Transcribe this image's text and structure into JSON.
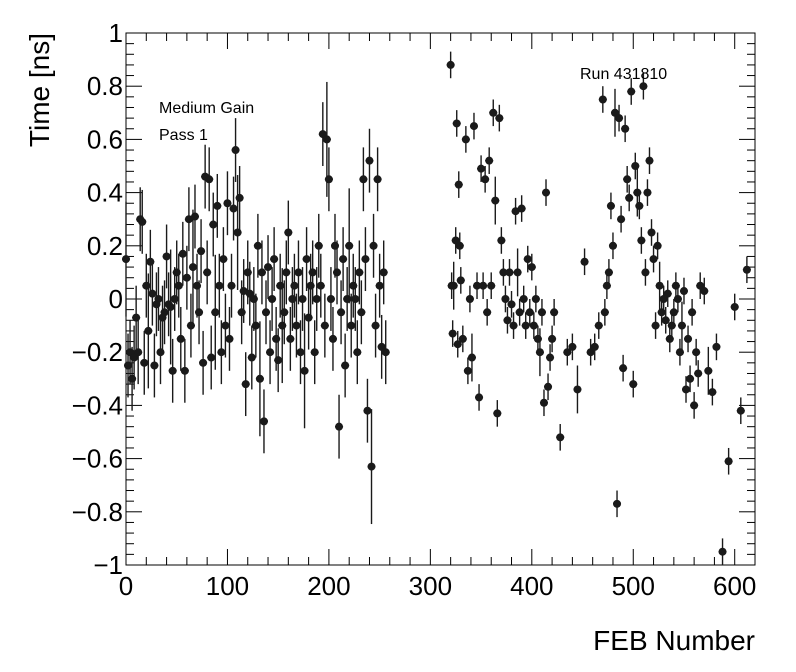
{
  "chart_data": {
    "type": "scatter",
    "xlabel": "FEB Number",
    "ylabel": "Time [ns]",
    "xlim": [
      0,
      620
    ],
    "ylim": [
      -1,
      1
    ],
    "x_ticks": [
      "0",
      "100",
      "200",
      "300",
      "400",
      "500",
      "600"
    ],
    "y_ticks": [
      "−1",
      "−0.8",
      "−0.6",
      "−0.4",
      "−0.2",
      "0",
      "0.2",
      "0.4",
      "0.6",
      "0.8",
      "1"
    ],
    "annotations": [
      "Medium Gain",
      "Pass 1",
      "Run 431810"
    ],
    "grid": false,
    "marker_color": "#1a1a1a",
    "series": [
      {
        "points": [
          [
            0,
            0.15
          ],
          [
            2,
            -0.25
          ],
          [
            4,
            -0.2
          ],
          [
            6,
            -0.3
          ],
          [
            8,
            -0.22
          ],
          [
            10,
            -0.07
          ],
          [
            12,
            -0.2
          ],
          [
            14,
            0.3
          ],
          [
            16,
            0.29
          ],
          [
            18,
            -0.24
          ],
          [
            20,
            0.05
          ],
          [
            22,
            -0.12
          ],
          [
            24,
            0.14
          ],
          [
            26,
            0.02
          ],
          [
            28,
            -0.25
          ],
          [
            30,
            -0.02
          ],
          [
            32,
            0.0
          ],
          [
            34,
            -0.2
          ],
          [
            36,
            -0.07
          ],
          [
            38,
            -0.05
          ],
          [
            40,
            0.16
          ],
          [
            42,
            -0.02
          ],
          [
            44,
            -0.03
          ],
          [
            46,
            -0.27
          ],
          [
            48,
            0.0
          ],
          [
            50,
            0.1
          ],
          [
            52,
            0.05
          ],
          [
            54,
            -0.15
          ],
          [
            56,
            0.17
          ],
          [
            58,
            -0.27
          ],
          [
            60,
            0.08
          ],
          [
            62,
            0.3
          ],
          [
            64,
            -0.1
          ],
          [
            66,
            0.12
          ],
          [
            68,
            0.31
          ],
          [
            70,
            0.05
          ],
          [
            72,
            -0.05
          ],
          [
            74,
            0.18
          ],
          [
            76,
            -0.24
          ],
          [
            78,
            0.46
          ],
          [
            80,
            0.1
          ],
          [
            82,
            0.45
          ],
          [
            84,
            -0.22
          ],
          [
            86,
            0.28
          ],
          [
            88,
            -0.05
          ],
          [
            90,
            0.35
          ],
          [
            92,
            0.05
          ],
          [
            94,
            -0.2
          ],
          [
            96,
            0.15
          ],
          [
            98,
            -0.1
          ],
          [
            100,
            0.36
          ],
          [
            102,
            -0.15
          ],
          [
            104,
            0.05
          ],
          [
            106,
            0.34
          ],
          [
            108,
            0.56
          ],
          [
            110,
            0.25
          ],
          [
            112,
            0.38
          ],
          [
            114,
            -0.05
          ],
          [
            116,
            0.03
          ],
          [
            118,
            -0.32
          ],
          [
            120,
            0.1
          ],
          [
            122,
            0.02
          ],
          [
            124,
            -0.22
          ],
          [
            126,
            0.0
          ],
          [
            128,
            -0.1
          ],
          [
            130,
            0.2
          ],
          [
            132,
            -0.3
          ],
          [
            134,
            0.1
          ],
          [
            136,
            -0.46
          ],
          [
            138,
            -0.05
          ],
          [
            140,
            0.12
          ],
          [
            142,
            -0.2
          ],
          [
            144,
            0.0
          ],
          [
            146,
            0.15
          ],
          [
            148,
            -0.15
          ],
          [
            150,
            -0.23
          ],
          [
            152,
            0.05
          ],
          [
            154,
            -0.1
          ],
          [
            156,
            -0.05
          ],
          [
            158,
            0.1
          ],
          [
            160,
            0.25
          ],
          [
            162,
            -0.15
          ],
          [
            164,
            0.0
          ],
          [
            166,
            0.05
          ],
          [
            168,
            -0.1
          ],
          [
            170,
            0.1
          ],
          [
            172,
            -0.2
          ],
          [
            174,
            0.0
          ],
          [
            176,
            -0.27
          ],
          [
            178,
            0.15
          ],
          [
            180,
            -0.07
          ],
          [
            182,
            0.05
          ],
          [
            184,
            0.1
          ],
          [
            186,
            -0.2
          ],
          [
            188,
            0.0
          ],
          [
            190,
            0.2
          ],
          [
            192,
            0.05
          ],
          [
            194,
            0.62
          ],
          [
            196,
            -0.1
          ],
          [
            198,
            0.6
          ],
          [
            200,
            0.45
          ],
          [
            202,
            0.0
          ],
          [
            204,
            -0.15
          ],
          [
            206,
            0.2
          ],
          [
            208,
            0.1
          ],
          [
            210,
            -0.48
          ],
          [
            212,
            -0.05
          ],
          [
            214,
            0.15
          ],
          [
            216,
            -0.25
          ],
          [
            218,
            0.0
          ],
          [
            220,
            0.2
          ],
          [
            222,
            -0.1
          ],
          [
            224,
            0.05
          ],
          [
            226,
            0.0
          ],
          [
            228,
            -0.2
          ],
          [
            230,
            0.1
          ],
          [
            232,
            -0.05
          ],
          [
            234,
            0.45
          ],
          [
            236,
            0.15
          ],
          [
            238,
            -0.42
          ],
          [
            240,
            0.52
          ],
          [
            242,
            -0.63
          ],
          [
            244,
            0.2
          ],
          [
            246,
            -0.1
          ],
          [
            248,
            0.45
          ],
          [
            250,
            0.05
          ],
          [
            252,
            -0.18
          ],
          [
            254,
            0.1
          ],
          [
            256,
            -0.2
          ],
          [
            320,
            0.88
          ],
          [
            321,
            0.05
          ],
          [
            322,
            -0.13
          ],
          [
            323,
            0.05
          ],
          [
            325,
            0.22
          ],
          [
            326,
            0.66
          ],
          [
            327,
            -0.17
          ],
          [
            328,
            0.43
          ],
          [
            329,
            0.2
          ],
          [
            330,
            0.07
          ],
          [
            332,
            -0.15
          ],
          [
            335,
            0.6
          ],
          [
            337,
            -0.27
          ],
          [
            339,
            0.0
          ],
          [
            341,
            -0.22
          ],
          [
            343,
            0.65
          ],
          [
            346,
            0.05
          ],
          [
            348,
            -0.37
          ],
          [
            350,
            0.49
          ],
          [
            352,
            0.05
          ],
          [
            354,
            0.45
          ],
          [
            356,
            -0.05
          ],
          [
            358,
            0.52
          ],
          [
            360,
            0.05
          ],
          [
            362,
            0.7
          ],
          [
            364,
            0.37
          ],
          [
            366,
            -0.43
          ],
          [
            368,
            0.68
          ],
          [
            370,
            0.22
          ],
          [
            372,
            0.1
          ],
          [
            374,
            0.0
          ],
          [
            376,
            -0.08
          ],
          [
            378,
            0.1
          ],
          [
            380,
            -0.02
          ],
          [
            382,
            -0.1
          ],
          [
            384,
            0.33
          ],
          [
            386,
            0.1
          ],
          [
            388,
            -0.05
          ],
          [
            390,
            0.34
          ],
          [
            392,
            0.0
          ],
          [
            394,
            -0.1
          ],
          [
            396,
            0.15
          ],
          [
            398,
            -0.05
          ],
          [
            400,
            0.12
          ],
          [
            402,
            -0.1
          ],
          [
            404,
            0.0
          ],
          [
            406,
            -0.15
          ],
          [
            408,
            -0.2
          ],
          [
            410,
            -0.05
          ],
          [
            412,
            -0.39
          ],
          [
            414,
            0.4
          ],
          [
            416,
            -0.33
          ],
          [
            418,
            -0.22
          ],
          [
            420,
            -0.15
          ],
          [
            422,
            -0.05
          ],
          [
            428,
            -0.52
          ],
          [
            435,
            -0.2
          ],
          [
            440,
            -0.18
          ],
          [
            445,
            -0.34
          ],
          [
            452,
            0.14
          ],
          [
            458,
            -0.2
          ],
          [
            462,
            -0.18
          ],
          [
            466,
            -0.1
          ],
          [
            470,
            0.75
          ],
          [
            472,
            -0.05
          ],
          [
            474,
            0.05
          ],
          [
            476,
            0.1
          ],
          [
            478,
            0.35
          ],
          [
            480,
            0.2
          ],
          [
            482,
            0.7
          ],
          [
            484,
            -0.77
          ],
          [
            486,
            0.68
          ],
          [
            488,
            0.3
          ],
          [
            490,
            -0.26
          ],
          [
            492,
            0.64
          ],
          [
            494,
            0.45
          ],
          [
            496,
            0.38
          ],
          [
            498,
            0.78
          ],
          [
            500,
            -0.32
          ],
          [
            502,
            0.5
          ],
          [
            504,
            0.4
          ],
          [
            506,
            0.35
          ],
          [
            508,
            0.22
          ],
          [
            510,
            0.8
          ],
          [
            512,
            0.1
          ],
          [
            514,
            0.4
          ],
          [
            516,
            0.52
          ],
          [
            518,
            0.25
          ],
          [
            520,
            0.15
          ],
          [
            522,
            -0.1
          ],
          [
            524,
            0.2
          ],
          [
            526,
            0.05
          ],
          [
            528,
            -0.05
          ],
          [
            530,
            0.0
          ],
          [
            532,
            -0.08
          ],
          [
            534,
            0.02
          ],
          [
            536,
            -0.15
          ],
          [
            538,
            -0.1
          ],
          [
            540,
            -0.05
          ],
          [
            542,
            0.05
          ],
          [
            544,
            0.0
          ],
          [
            546,
            -0.2
          ],
          [
            548,
            -0.1
          ],
          [
            550,
            0.03
          ],
          [
            552,
            -0.34
          ],
          [
            554,
            -0.15
          ],
          [
            556,
            -0.3
          ],
          [
            558,
            -0.05
          ],
          [
            560,
            -0.4
          ],
          [
            562,
            -0.2
          ],
          [
            564,
            -0.28
          ],
          [
            566,
            0.05
          ],
          [
            570,
            0.03
          ],
          [
            574,
            -0.27
          ],
          [
            578,
            -0.35
          ],
          [
            582,
            -0.18
          ],
          [
            588,
            -0.95
          ],
          [
            594,
            -0.61
          ],
          [
            600,
            -0.03
          ],
          [
            606,
            -0.42
          ],
          [
            612,
            0.11
          ]
        ]
      }
    ]
  }
}
